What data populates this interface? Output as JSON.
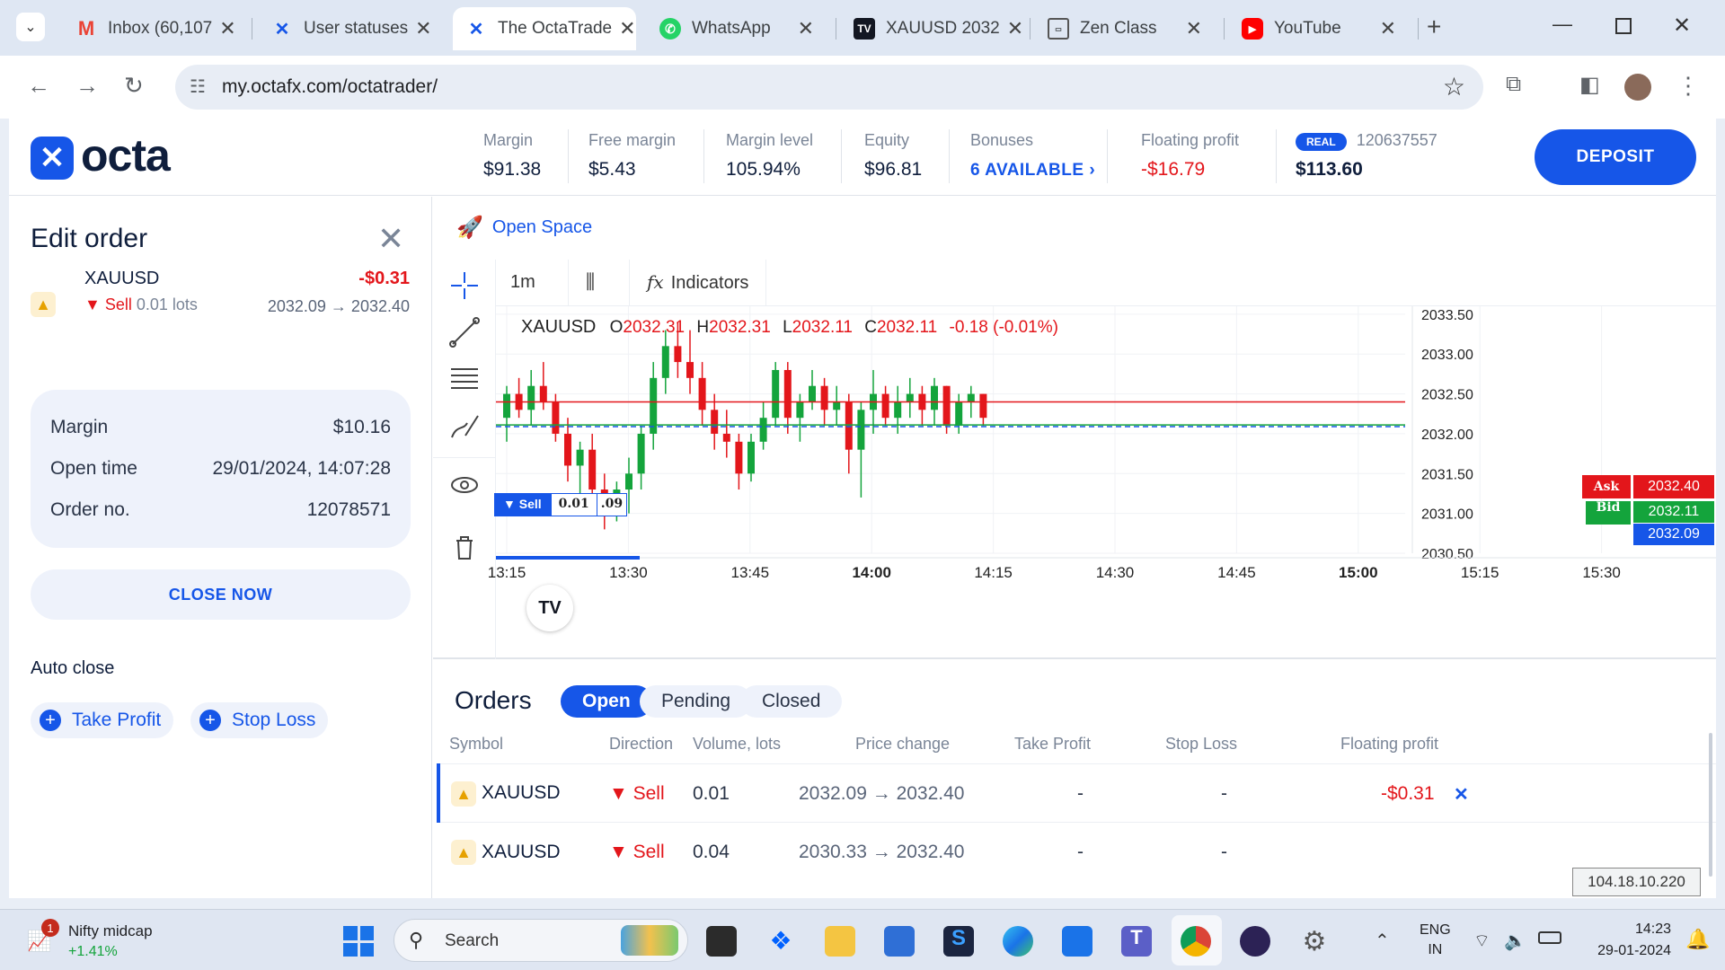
{
  "browser": {
    "tabs": [
      {
        "title": "Inbox (60,107",
        "icon": "gmail-icon"
      },
      {
        "title": "User statuses",
        "icon": "octa-icon"
      },
      {
        "title": "The OctaTrade",
        "icon": "octa-icon"
      },
      {
        "title": "WhatsApp",
        "icon": "whatsapp-icon"
      },
      {
        "title": "XAUUSD 2032",
        "icon": "tradingview-icon"
      },
      {
        "title": "Zen Class",
        "icon": "zenclass-icon"
      },
      {
        "title": "YouTube",
        "icon": "youtube-icon"
      }
    ],
    "url": "my.octafx.com/octatrader/"
  },
  "header": {
    "logo": "octa",
    "margin_label": "Margin",
    "margin_value": "$91.38",
    "free_margin_label": "Free margin",
    "free_margin_value": "$5.43",
    "margin_level_label": "Margin level",
    "margin_level_value": "105.94%",
    "equity_label": "Equity",
    "equity_value": "$96.81",
    "bonuses_label": "Bonuses",
    "bonuses_value": "6 AVAILABLE",
    "floating_label": "Floating profit",
    "floating_value": "-$16.79",
    "account_badge": "REAL",
    "account_number": "120637557",
    "account_balance": "$113.60",
    "deposit_label": "DEPOSIT"
  },
  "edit_order": {
    "title": "Edit order",
    "symbol": "XAUUSD",
    "profit": "-$0.31",
    "direction": "Sell",
    "lots": "0.01 lots",
    "prices": "2032.09 → 2032.40",
    "margin_label": "Margin",
    "margin_value": "$10.16",
    "open_time_label": "Open time",
    "open_time_value": "29/01/2024, 14:07:28",
    "order_no_label": "Order no.",
    "order_no_value": "12078571",
    "close_now": "CLOSE NOW",
    "auto_close": "Auto close",
    "take_profit": "Take Profit",
    "stop_loss": "Stop Loss"
  },
  "chart": {
    "open_space": "Open Space",
    "timeframe": "1m",
    "indicators": "Indicators",
    "symbol": "XAUUSD",
    "o_label": "O",
    "o_value": "2032.31",
    "h_label": "H",
    "h_value": "2032.31",
    "l_label": "L",
    "l_value": "2032.11",
    "c_label": "C",
    "c_value": "2032.11",
    "change": "-0.18 (-0.01%)",
    "ask_label": "Ask",
    "ask_value": "2032.40",
    "bid_label": "Bid",
    "bid_value": "2032.11",
    "order_line_value": "2032.09",
    "sell_tag": "▼ Sell",
    "sell_qty": "0.01",
    "sell_price_frag": ".09",
    "y_ticks": [
      "2033.50",
      "2033.00",
      "2032.50",
      "2032.00",
      "2031.50",
      "2031.00",
      "2030.50"
    ],
    "x_ticks": [
      "13:15",
      "13:30",
      "13:45",
      "14:00",
      "14:15",
      "14:30",
      "14:45",
      "15:00",
      "15:15",
      "15:30"
    ]
  },
  "chart_data": {
    "type": "candlestick",
    "xlabel": "",
    "ylabel": "",
    "ylim": [
      2030.5,
      2033.6
    ],
    "series": [
      {
        "values": [
          [
            2032.2,
            2032.6,
            2031.9,
            2032.5
          ],
          [
            2032.5,
            2032.7,
            2032.2,
            2032.3
          ],
          [
            2032.3,
            2032.8,
            2032.1,
            2032.6
          ],
          [
            2032.6,
            2032.9,
            2032.3,
            2032.4
          ],
          [
            2032.4,
            2032.5,
            2031.9,
            2032.0
          ],
          [
            2032.0,
            2032.2,
            2031.4,
            2031.6
          ],
          [
            2031.6,
            2031.9,
            2031.2,
            2031.8
          ],
          [
            2031.8,
            2032.0,
            2031.1,
            2031.3
          ],
          [
            2031.3,
            2031.5,
            2030.8,
            2031.0
          ],
          [
            2031.0,
            2031.4,
            2030.9,
            2031.3
          ],
          [
            2031.3,
            2031.7,
            2031.0,
            2031.5
          ],
          [
            2031.5,
            2032.1,
            2031.3,
            2032.0
          ],
          [
            2032.0,
            2032.9,
            2031.8,
            2032.7
          ],
          [
            2032.7,
            2033.3,
            2032.5,
            2033.1
          ],
          [
            2033.1,
            2033.4,
            2032.7,
            2032.9
          ],
          [
            2032.9,
            2033.3,
            2032.5,
            2032.7
          ],
          [
            2032.7,
            2032.9,
            2032.1,
            2032.3
          ],
          [
            2032.3,
            2032.5,
            2031.8,
            2032.0
          ],
          [
            2032.0,
            2032.3,
            2031.7,
            2031.9
          ],
          [
            2031.9,
            2032.0,
            2031.3,
            2031.5
          ],
          [
            2031.5,
            2032.0,
            2031.4,
            2031.9
          ],
          [
            2031.9,
            2032.4,
            2031.8,
            2032.2
          ],
          [
            2032.2,
            2032.9,
            2032.1,
            2032.8
          ],
          [
            2032.8,
            2032.9,
            2032.0,
            2032.2
          ],
          [
            2032.2,
            2032.5,
            2031.9,
            2032.4
          ],
          [
            2032.4,
            2032.8,
            2032.3,
            2032.6
          ],
          [
            2032.6,
            2032.7,
            2032.1,
            2032.3
          ],
          [
            2032.3,
            2032.6,
            2032.1,
            2032.4
          ],
          [
            2032.4,
            2032.5,
            2031.5,
            2031.8
          ],
          [
            2031.8,
            2032.4,
            2031.2,
            2032.3
          ],
          [
            2032.3,
            2032.8,
            2032.0,
            2032.5
          ],
          [
            2032.5,
            2032.6,
            2032.1,
            2032.2
          ],
          [
            2032.2,
            2032.6,
            2032.0,
            2032.4
          ],
          [
            2032.4,
            2032.7,
            2032.2,
            2032.5
          ],
          [
            2032.5,
            2032.6,
            2032.1,
            2032.3
          ],
          [
            2032.3,
            2032.7,
            2032.1,
            2032.6
          ],
          [
            2032.6,
            2032.6,
            2032.0,
            2032.1
          ],
          [
            2032.1,
            2032.5,
            2032.0,
            2032.4
          ],
          [
            2032.4,
            2032.6,
            2032.2,
            2032.5
          ],
          [
            2032.5,
            2032.5,
            2032.1,
            2032.2
          ]
        ]
      }
    ]
  },
  "orders": {
    "title": "Orders",
    "tabs": [
      "Open",
      "Pending",
      "Closed"
    ],
    "columns": [
      "Symbol",
      "Direction",
      "Volume, lots",
      "Price change",
      "Take Profit",
      "Stop Loss",
      "Floating profit"
    ],
    "rows": [
      {
        "symbol": "XAUUSD",
        "direction": "▼ Sell",
        "volume": "0.01",
        "price": "2032.09 → 2032.40",
        "tp": "-",
        "sl": "-",
        "profit": "-$0.31"
      },
      {
        "symbol": "XAUUSD",
        "direction": "▼ Sell",
        "volume": "0.04",
        "price": "2030.33 → 2032.40",
        "tp": "-",
        "sl": "-",
        "profit": ""
      }
    ]
  },
  "tooltip": "104.18.10.220",
  "taskbar": {
    "widget_title": "Nifty midcap",
    "widget_value": "+1.41%",
    "notif_count": "1",
    "search": "Search",
    "lang1": "ENG",
    "lang2": "IN",
    "time": "14:23",
    "date": "29-01-2024"
  },
  "colors": {
    "brand": "#1656e8",
    "red": "#e3161b",
    "green": "#14a43c"
  }
}
